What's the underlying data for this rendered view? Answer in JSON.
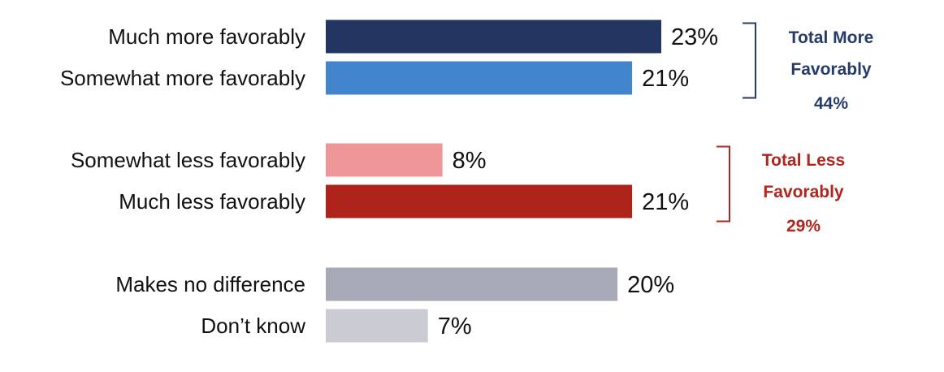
{
  "chart_data": {
    "type": "bar",
    "orientation": "horizontal",
    "categories": [
      "Much more favorably",
      "Somewhat more favorably",
      "Somewhat less favorably",
      "Much less favorably",
      "Makes no difference",
      "Don’t know"
    ],
    "values": [
      23,
      21,
      8,
      21,
      20,
      7
    ],
    "value_labels": [
      "23%",
      "21%",
      "8%",
      "21%",
      "20%",
      "7%"
    ],
    "bar_colors": [
      "#233561",
      "#4385cc",
      "#ef9698",
      "#ad2219",
      "#a7a9b6",
      "#cbccd3"
    ],
    "xlim": [
      0,
      23
    ],
    "grid": false,
    "groups": [
      {
        "lines": [
          "Total More",
          "Favorably",
          "44%"
        ],
        "color": "#243b6b",
        "members": [
          0,
          1
        ]
      },
      {
        "lines": [
          "Total Less",
          "Favorably",
          "29%"
        ],
        "color": "#b0261e",
        "members": [
          2,
          3
        ]
      }
    ]
  }
}
